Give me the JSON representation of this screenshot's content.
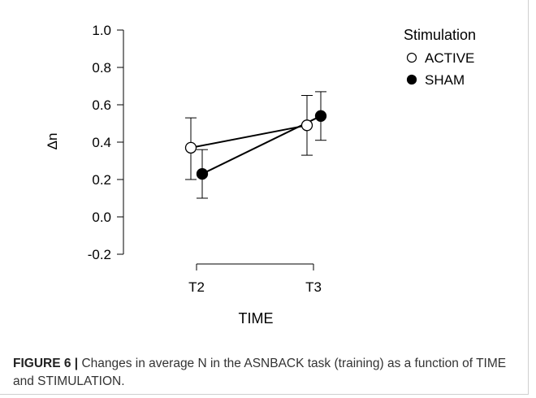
{
  "chart_data": {
    "type": "line",
    "x": [
      "T2",
      "T3"
    ],
    "xlabel": "TIME",
    "ylabel": "Δn",
    "ylim": [
      -0.2,
      1.0
    ],
    "yticks": [
      "1.0",
      "0.8",
      "0.6",
      "0.4",
      "0.2",
      "0.0",
      "-0.2"
    ],
    "legend": {
      "title": "Stimulation",
      "position": "top-right"
    },
    "series": [
      {
        "name": "ACTIVE",
        "marker": "open-circle",
        "values": [
          0.37,
          0.49
        ],
        "error_low": [
          0.2,
          0.33
        ],
        "error_high": [
          0.53,
          0.65
        ]
      },
      {
        "name": "SHAM",
        "marker": "filled-circle",
        "values": [
          0.23,
          0.54
        ],
        "error_low": [
          0.1,
          0.41
        ],
        "error_high": [
          0.36,
          0.67
        ]
      }
    ],
    "grid": false
  },
  "caption": {
    "label": "FIGURE 6 |",
    "text": " Changes in average N in the ASNBACK task (training) as a function of TIME and STIMULATION."
  }
}
